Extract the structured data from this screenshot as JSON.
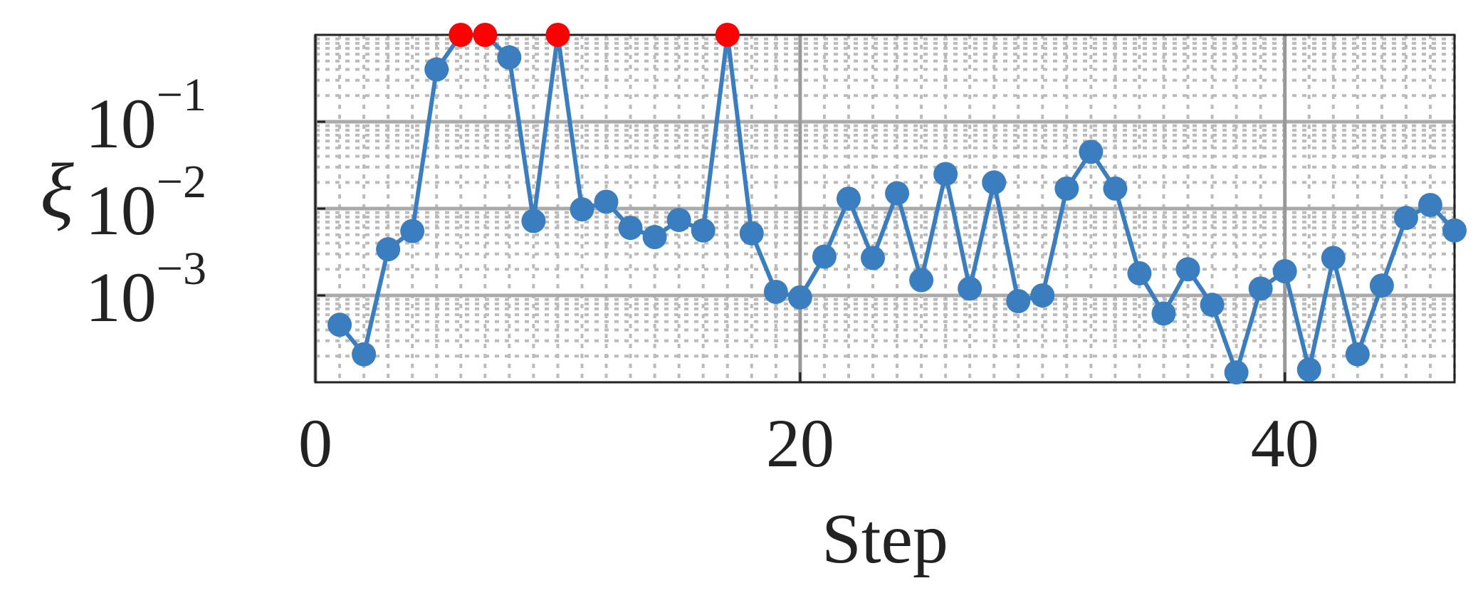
{
  "chart_data": {
    "type": "line",
    "xlabel": "Step",
    "ylabel": "ξ",
    "x": [
      1,
      2,
      3,
      4,
      5,
      6,
      7,
      8,
      9,
      10,
      11,
      12,
      13,
      14,
      15,
      16,
      17,
      18,
      19,
      20,
      21,
      22,
      23,
      24,
      25,
      26,
      27,
      28,
      29,
      30,
      31,
      32,
      33,
      34,
      35,
      36,
      37,
      38,
      39,
      40,
      41,
      42,
      43,
      44,
      45,
      46,
      47
    ],
    "series": [
      {
        "color": "#3a7ebf",
        "highlight_color": "#ff0000",
        "values": [
          0.00046,
          0.00021,
          0.0034,
          0.0055,
          0.4,
          1,
          1,
          0.55,
          0.0072,
          1,
          0.0098,
          0.012,
          0.006,
          0.0047,
          0.0074,
          0.0056,
          1,
          0.0052,
          0.0011,
          0.00095,
          0.0028,
          0.013,
          0.0027,
          0.015,
          0.0015,
          0.025,
          0.0012,
          0.02,
          0.00086,
          0.001,
          0.017,
          0.045,
          0.017,
          0.0018,
          0.00062,
          0.002,
          0.00078,
          0.00013,
          0.0012,
          0.0019,
          0.00014,
          0.0027,
          0.00021,
          0.0013,
          0.0078,
          0.011,
          0.0056
        ]
      }
    ],
    "xlim": [
      0,
      47
    ],
    "xticks": [
      0,
      20,
      40
    ],
    "ylim": [
      0.0001,
      1
    ],
    "log_y": true,
    "yticks": [
      {
        "value": 0.1,
        "label": "10",
        "exponent": "−1"
      },
      {
        "value": 0.01,
        "label": "10",
        "exponent": "−2"
      },
      {
        "value": 0.001,
        "label": "10",
        "exponent": "−3"
      }
    ],
    "grid": true,
    "minor_grid": true
  }
}
